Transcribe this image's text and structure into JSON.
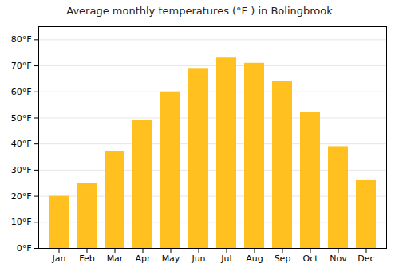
{
  "chart_data": {
    "type": "bar",
    "title": "Average monthly temperatures (°F ) in Bolingbrook",
    "categories": [
      "Jan",
      "Feb",
      "Mar",
      "Apr",
      "May",
      "Jun",
      "Jul",
      "Aug",
      "Sep",
      "Oct",
      "Nov",
      "Dec"
    ],
    "values": [
      20,
      25,
      37,
      49,
      60,
      69,
      73,
      71,
      64,
      52,
      39,
      26
    ],
    "color": "#FFC020",
    "ylim": [
      0,
      85
    ],
    "yticks": [
      {
        "value": 0,
        "label": "0°F"
      },
      {
        "value": 10,
        "label": "10°F"
      },
      {
        "value": 20,
        "label": "20°F"
      },
      {
        "value": 30,
        "label": "30°F"
      },
      {
        "value": 40,
        "label": "40°F"
      },
      {
        "value": 50,
        "label": "50°F"
      },
      {
        "value": 60,
        "label": "60°F"
      },
      {
        "value": 70,
        "label": "70°F"
      },
      {
        "value": 80,
        "label": "80°F"
      }
    ],
    "grid": true
  }
}
